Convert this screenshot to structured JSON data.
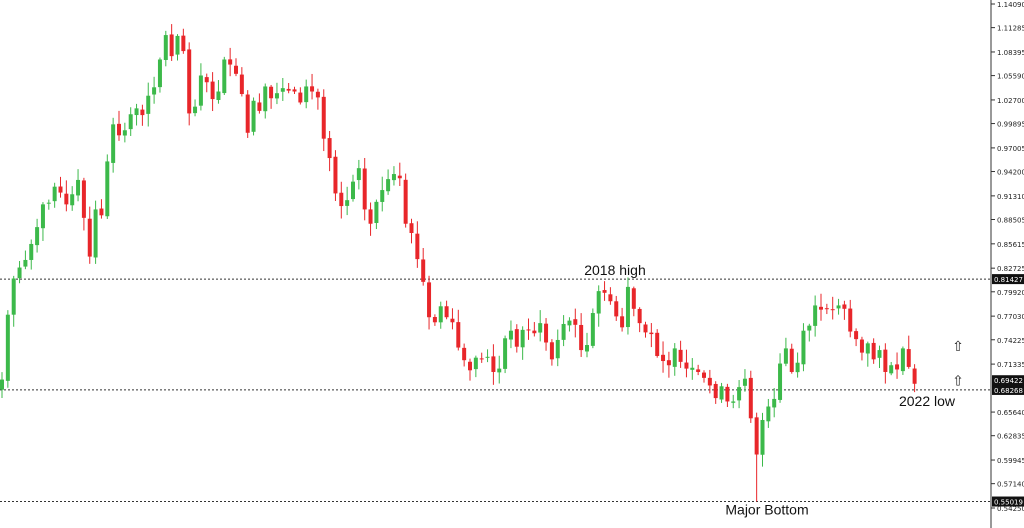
{
  "chart_data": {
    "type": "candlestick",
    "colors": {
      "up": "#3cb94a",
      "down": "#e8262a",
      "axis": "#333333",
      "level_line": "#333333",
      "tag_bg": "#111111"
    },
    "ylim": [
      0.5425,
      1.1409
    ],
    "y_ticks": [
      {
        "value": 1.1409,
        "label": "1.14090"
      },
      {
        "value": 1.11285,
        "label": "1.11285"
      },
      {
        "value": 1.08395,
        "label": "1.08395"
      },
      {
        "value": 1.0559,
        "label": "1.05590"
      },
      {
        "value": 1.027,
        "label": "1.02700"
      },
      {
        "value": 0.99895,
        "label": "0.99895"
      },
      {
        "value": 0.97005,
        "label": "0.97005"
      },
      {
        "value": 0.942,
        "label": "0.94200"
      },
      {
        "value": 0.9131,
        "label": "0.91310"
      },
      {
        "value": 0.88505,
        "label": "0.88505"
      },
      {
        "value": 0.85615,
        "label": "0.85615"
      },
      {
        "value": 0.82725,
        "label": "0.82725"
      },
      {
        "value": 0.7992,
        "label": "0.79920"
      },
      {
        "value": 0.7703,
        "label": "0.77030"
      },
      {
        "value": 0.74225,
        "label": "0.74225"
      },
      {
        "value": 0.71335,
        "label": "0.71335"
      },
      {
        "value": 0.6564,
        "label": "0.65640"
      },
      {
        "value": 0.62835,
        "label": "0.62835"
      },
      {
        "value": 0.59945,
        "label": "0.59945"
      },
      {
        "value": 0.5714,
        "label": "0.57140"
      },
      {
        "value": 0.5425,
        "label": "0.54250"
      }
    ],
    "levels": [
      {
        "value": 0.81427,
        "label": "0.81427",
        "annotation": "2018 high",
        "annotation_pos": "above-center"
      },
      {
        "value": 0.68268,
        "label": "0.68268",
        "annotation": "2022 low",
        "annotation_pos": "below-right"
      },
      {
        "value": 0.55019,
        "label": "0.55019",
        "annotation": "Major Bottom",
        "annotation_pos": "below-center"
      }
    ],
    "price_tags": [
      {
        "value": 0.69422,
        "label": "0.69422"
      }
    ],
    "arrows": [
      {
        "value": 0.735,
        "glyph": "⇧"
      },
      {
        "value": 0.694,
        "glyph": "⇧"
      }
    ],
    "closes": [
      0.695,
      0.772,
      0.815,
      0.828,
      0.837,
      0.856,
      0.876,
      0.903,
      0.905,
      0.924,
      0.917,
      0.903,
      0.915,
      0.932,
      0.887,
      0.841,
      0.897,
      0.89,
      0.954,
      0.998,
      0.985,
      0.991,
      1.01,
      1.017,
      1.009,
      1.032,
      1.042,
      1.075,
      1.104,
      1.079,
      1.103,
      1.085,
      1.011,
      1.019,
      1.056,
      1.048,
      1.028,
      1.037,
      1.075,
      1.069,
      1.058,
      1.034,
      0.988,
      1.026,
      1.014,
      1.043,
      1.029,
      1.035,
      1.041,
      1.038,
      1.037,
      1.024,
      1.043,
      1.037,
      1.03,
      0.981,
      0.958,
      0.916,
      0.901,
      0.908,
      0.93,
      0.946,
      0.897,
      0.88,
      0.906,
      0.92,
      0.933,
      0.939,
      0.934,
      0.88,
      0.869,
      0.838,
      0.811,
      0.769,
      0.763,
      0.782,
      0.769,
      0.763,
      0.733,
      0.718,
      0.706,
      0.721,
      0.72,
      0.722,
      0.704,
      0.708,
      0.744,
      0.753,
      0.734,
      0.754,
      0.754,
      0.75,
      0.762,
      0.739,
      0.719,
      0.742,
      0.761,
      0.765,
      0.76,
      0.73,
      0.736,
      0.774,
      0.8,
      0.798,
      0.788,
      0.77,
      0.757,
      0.805,
      0.779,
      0.762,
      0.751,
      0.749,
      0.723,
      0.717,
      0.712,
      0.732,
      0.716,
      0.708,
      0.709,
      0.704,
      0.697,
      0.688,
      0.673,
      0.687,
      0.669,
      0.669,
      0.686,
      0.696,
      0.649,
      0.606,
      0.647,
      0.663,
      0.672,
      0.714,
      0.732,
      0.704,
      0.715,
      0.753,
      0.759,
      0.783,
      0.778,
      0.779,
      0.778,
      0.783,
      0.779,
      0.752,
      0.743,
      0.727,
      0.738,
      0.719,
      0.73,
      0.704,
      0.712,
      0.707,
      0.732,
      0.71,
      0.69
    ],
    "x_labels": []
  }
}
